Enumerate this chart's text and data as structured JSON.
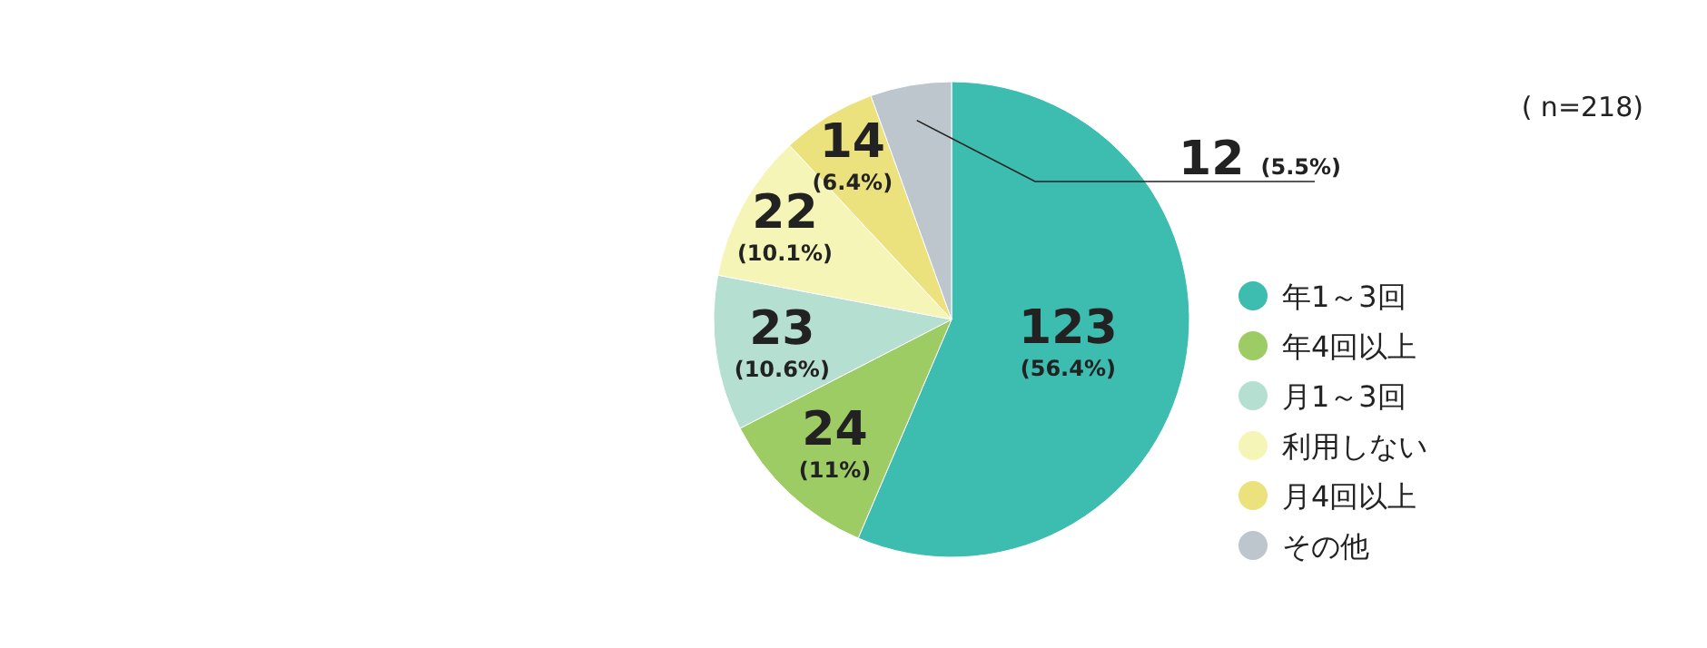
{
  "chart_data": {
    "type": "pie",
    "categories": [
      "年1～3回",
      "年4回以上",
      "月1～3回",
      "利用しない",
      "月4回以上",
      "その他"
    ],
    "values": [
      123,
      24,
      23,
      22,
      14,
      12
    ],
    "colors": [
      "#3dbcb0",
      "#9dcb64",
      "#b5dfd0",
      "#f5f5b8",
      "#ebe27d",
      "#bcc6cc"
    ],
    "value_labels": [
      "123 (56.4%)",
      "24 (11%)",
      "23 (10.6%)",
      "22 (10.1%)",
      "14 (6.4%)",
      "12 (5.5%)"
    ],
    "legend": "right",
    "annotations": [
      "( n=218)"
    ]
  }
}
